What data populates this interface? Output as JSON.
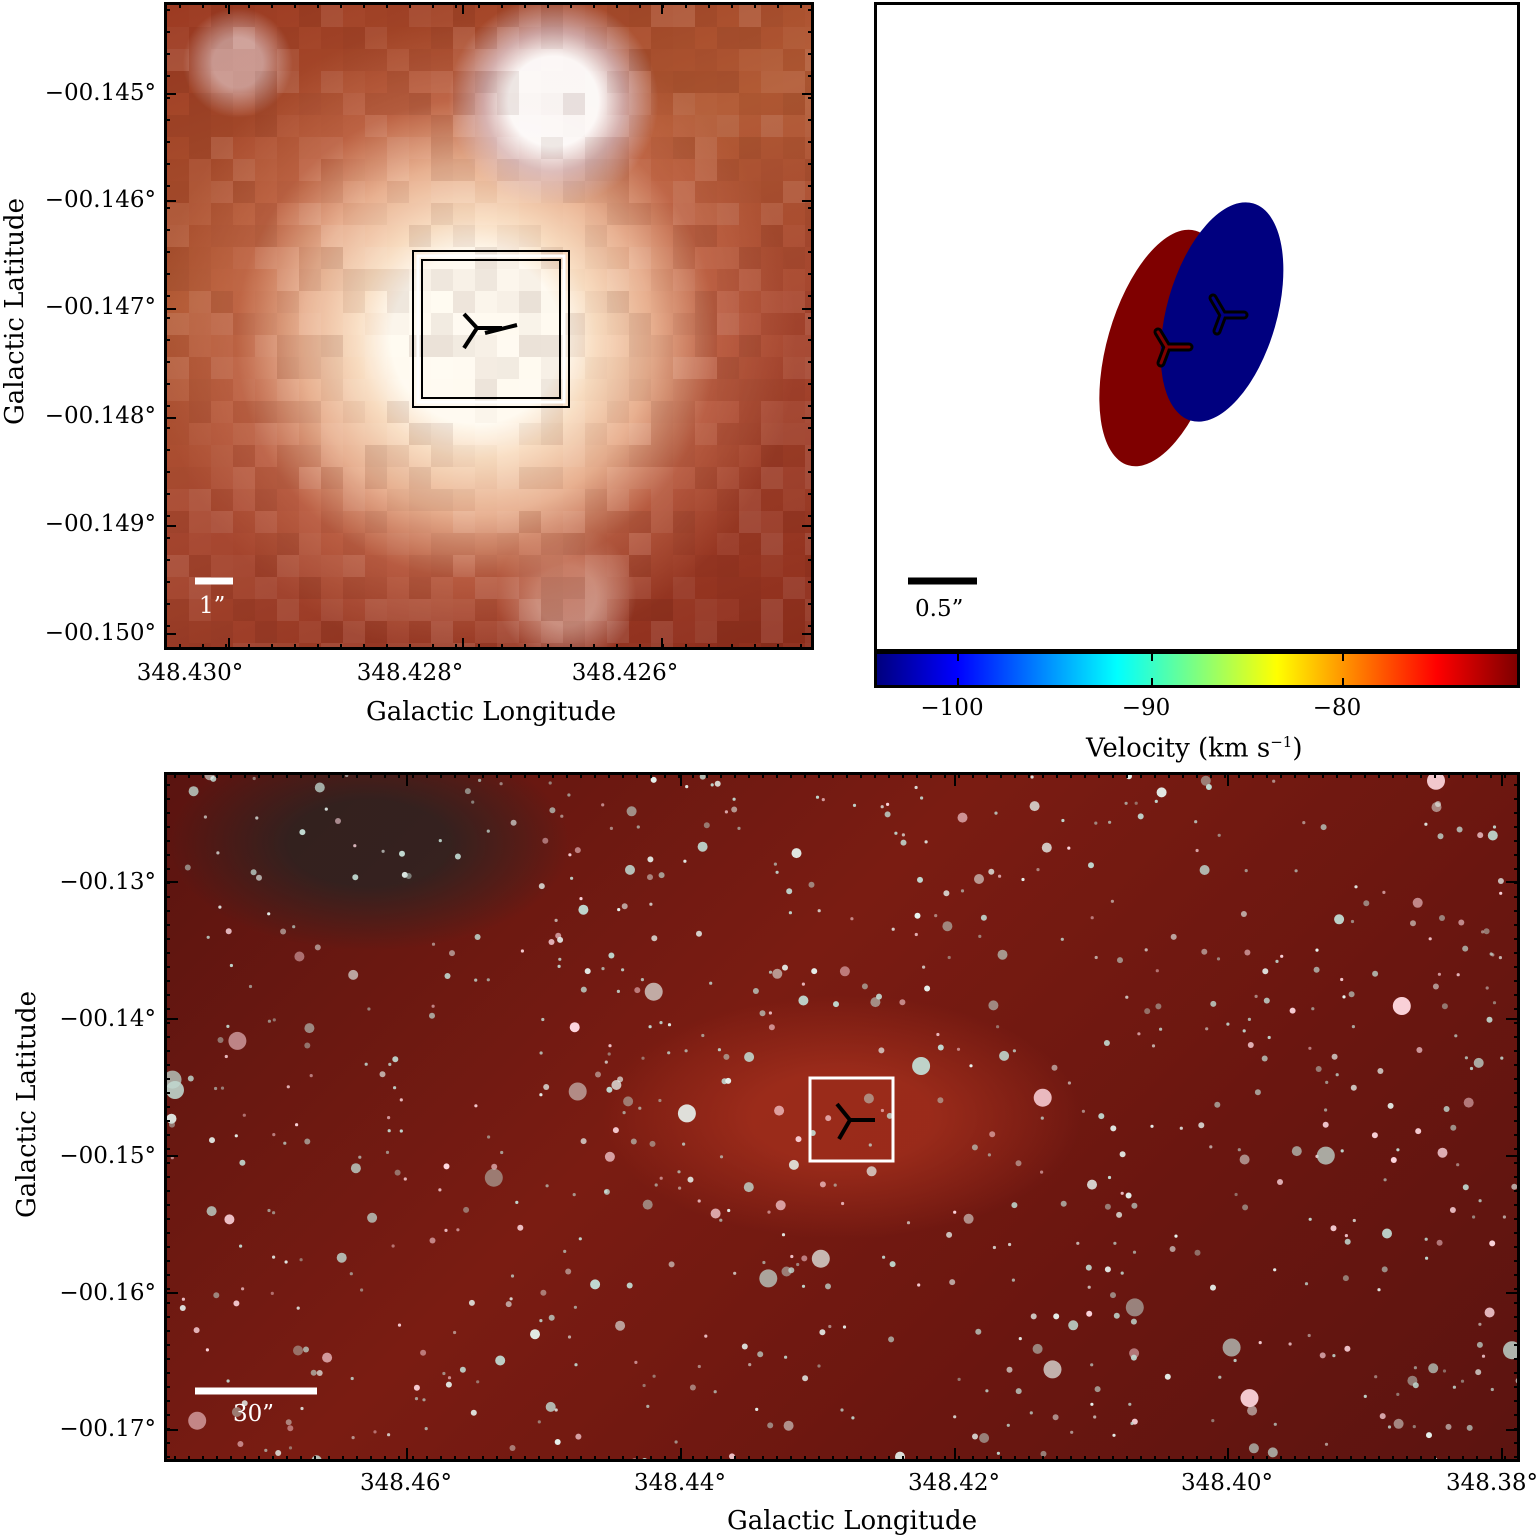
{
  "top_left": {
    "y_ticks": [
      "−00.145°",
      "−00.146°",
      "−00.147°",
      "−00.148°",
      "−00.149°",
      "−00.150°"
    ],
    "x_ticks": [
      "348.430°",
      "348.428°",
      "348.426°"
    ],
    "y_title": "Galactic Latitude",
    "x_title": "Galactic Longitude",
    "scalebar_label": "1”"
  },
  "top_right": {
    "scalebar_label": "0.5”",
    "colorbar": {
      "ticks": [
        "−100",
        "−90",
        "−80"
      ],
      "title": "Velocity (km s",
      "title_sup": "−1",
      "title_end": ")",
      "gradient_colors": [
        "#00007f",
        "#0000ff",
        "#007fff",
        "#00ffff",
        "#7fff7f",
        "#ffff00",
        "#ff7f00",
        "#ff0000",
        "#7f0000"
      ]
    },
    "ellipses": [
      {
        "color": "#7f0000"
      },
      {
        "color": "#00007f"
      }
    ]
  },
  "bottom": {
    "y_ticks": [
      "−00.13°",
      "−00.14°",
      "−00.15°",
      "−00.16°",
      "−00.17°"
    ],
    "x_ticks": [
      "348.46°",
      "348.44°",
      "348.42°",
      "348.40°",
      "348.38°"
    ],
    "y_title": "Galactic Latitude",
    "x_title": "Galactic Longitude",
    "scalebar_label": "30”"
  }
}
